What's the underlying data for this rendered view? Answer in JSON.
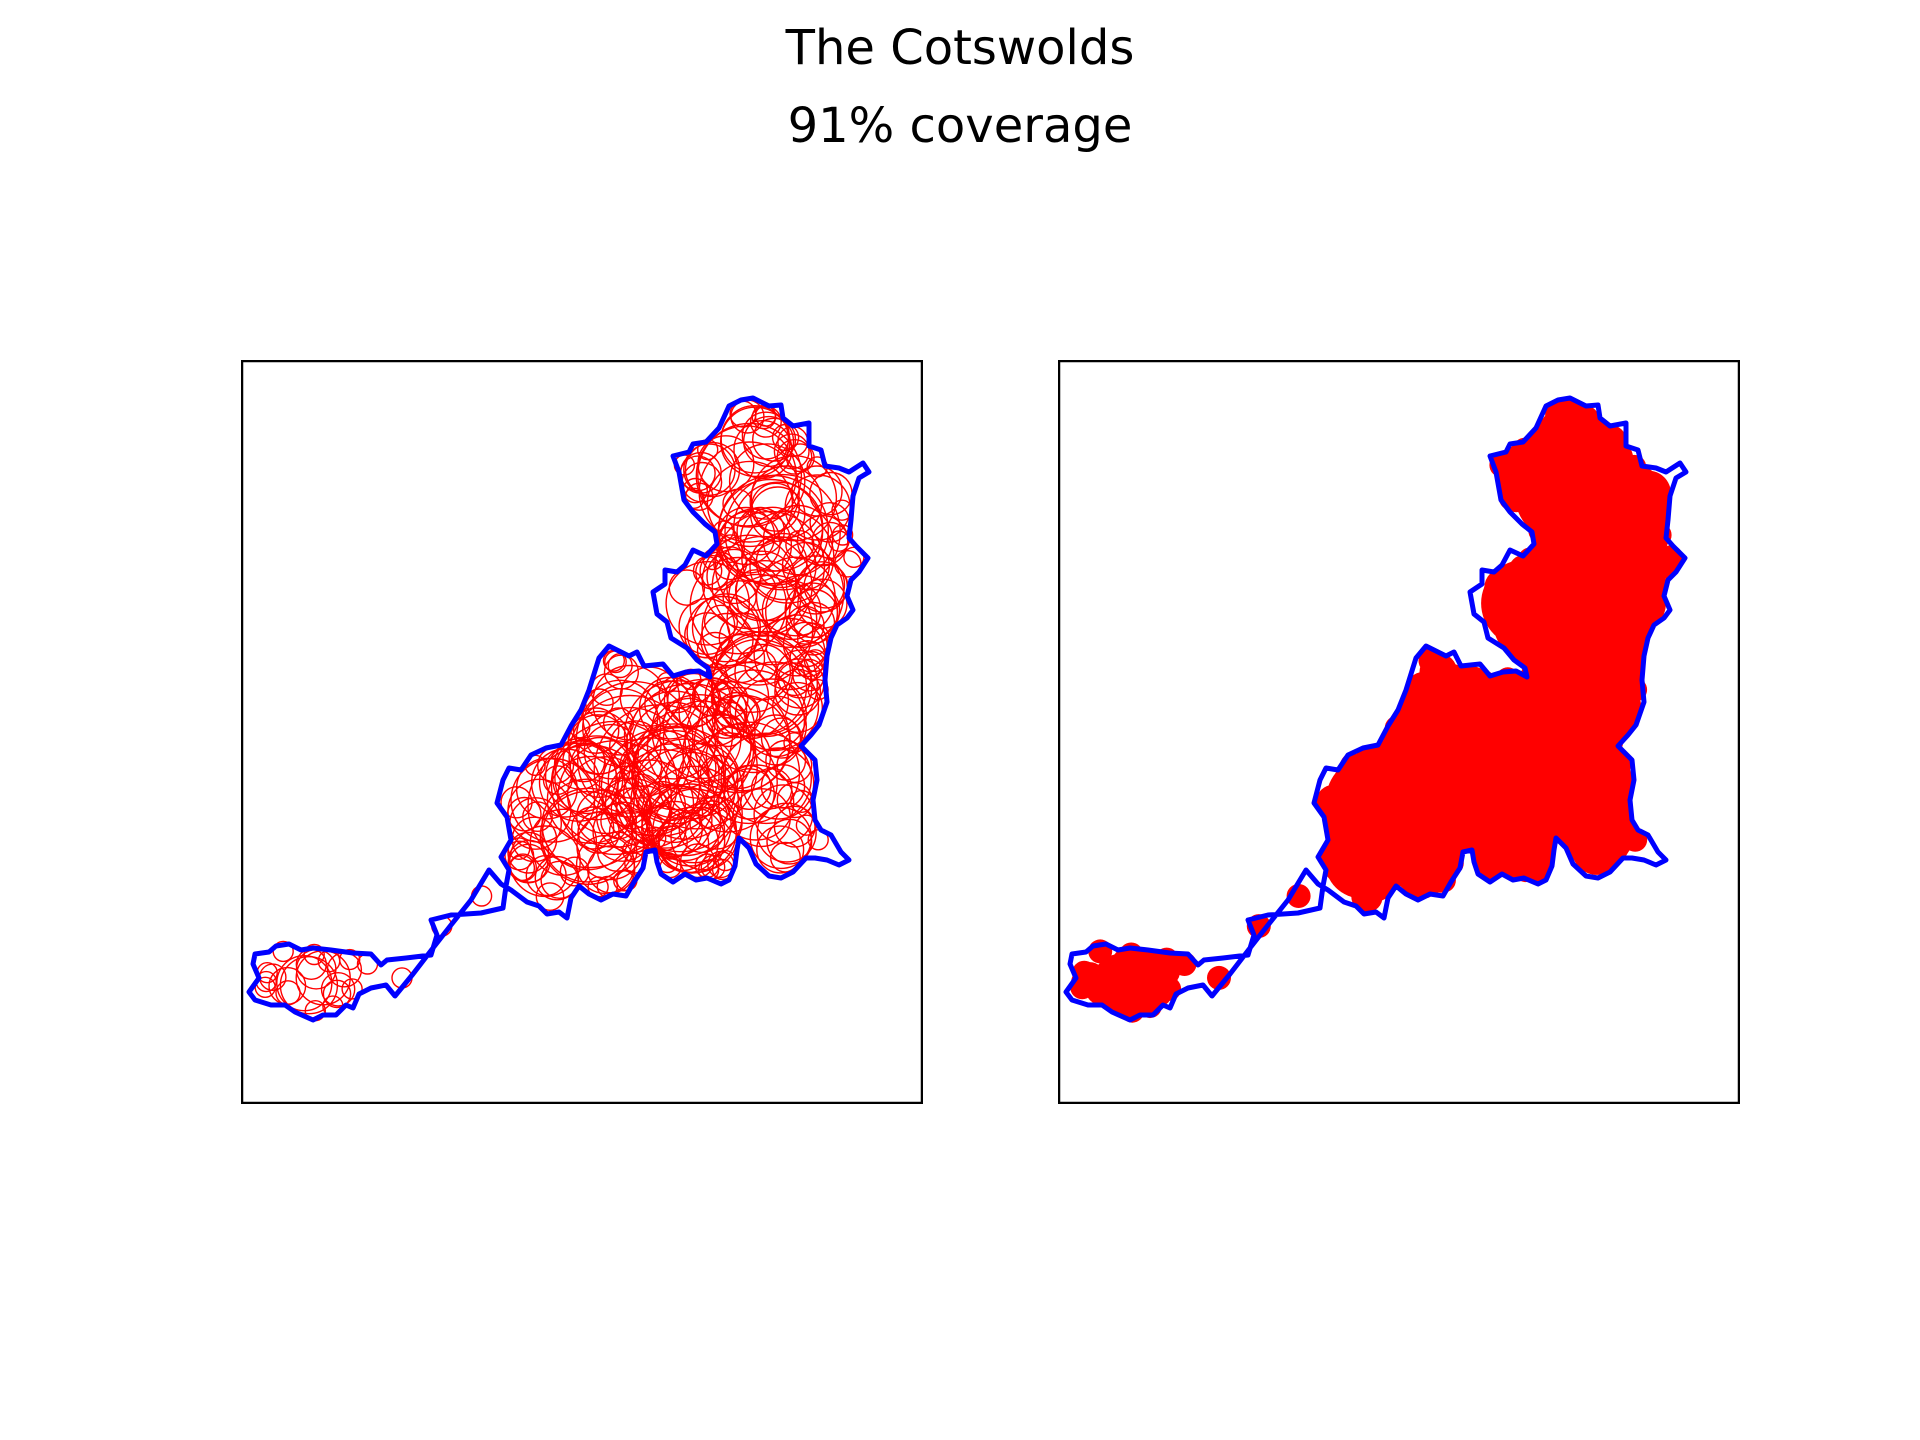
{
  "figure": {
    "title": "The Cotswolds",
    "subtitle": "91% coverage"
  },
  "colors": {
    "boundary": "#0000ff",
    "circles": "#ff0000",
    "fill": "#ff0000",
    "frame": "#000000",
    "background": "#ffffff"
  },
  "panels": [
    {
      "id": "left",
      "style": "circle-outlines"
    },
    {
      "id": "right",
      "style": "filled-coverage"
    }
  ]
}
